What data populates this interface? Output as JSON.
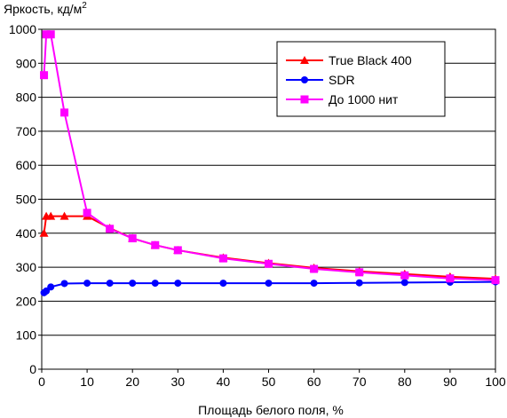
{
  "chart_data": {
    "type": "line",
    "ylabel": "Яркость, кд/м",
    "ylabel_sup": "2",
    "xlabel": "Площадь белого поля, %",
    "xlim": [
      0,
      100
    ],
    "ylim": [
      0,
      1000
    ],
    "x_ticks": [
      0,
      10,
      20,
      30,
      40,
      50,
      60,
      70,
      80,
      90,
      100
    ],
    "y_ticks": [
      0,
      100,
      200,
      300,
      400,
      500,
      600,
      700,
      800,
      900,
      1000
    ],
    "grid": "horizontal",
    "legend_position": "top-right",
    "series": [
      {
        "name": "True Black 400",
        "color": "#ff0000",
        "marker": "triangle",
        "x": [
          0.5,
          1,
          2,
          5,
          10,
          15,
          20,
          25,
          30,
          40,
          50,
          60,
          70,
          80,
          90,
          100
        ],
        "y": [
          400,
          450,
          450,
          450,
          450,
          415,
          385,
          365,
          350,
          328,
          312,
          298,
          288,
          280,
          272,
          266
        ]
      },
      {
        "name": "SDR",
        "color": "#0000ff",
        "marker": "circle",
        "x": [
          0.5,
          1,
          2,
          5,
          10,
          15,
          20,
          25,
          30,
          40,
          50,
          60,
          70,
          80,
          90,
          100
        ],
        "y": [
          225,
          230,
          242,
          252,
          253,
          253,
          253,
          253,
          253,
          253,
          253,
          253,
          254,
          255,
          256,
          257
        ]
      },
      {
        "name": "До 1000 нит",
        "color": "#ff00ff",
        "marker": "square",
        "x": [
          0.5,
          1,
          2,
          5,
          10,
          15,
          20,
          25,
          30,
          40,
          50,
          60,
          70,
          80,
          90,
          100
        ],
        "y": [
          865,
          985,
          985,
          755,
          460,
          413,
          385,
          365,
          350,
          326,
          310,
          295,
          285,
          276,
          267,
          262
        ]
      }
    ]
  }
}
